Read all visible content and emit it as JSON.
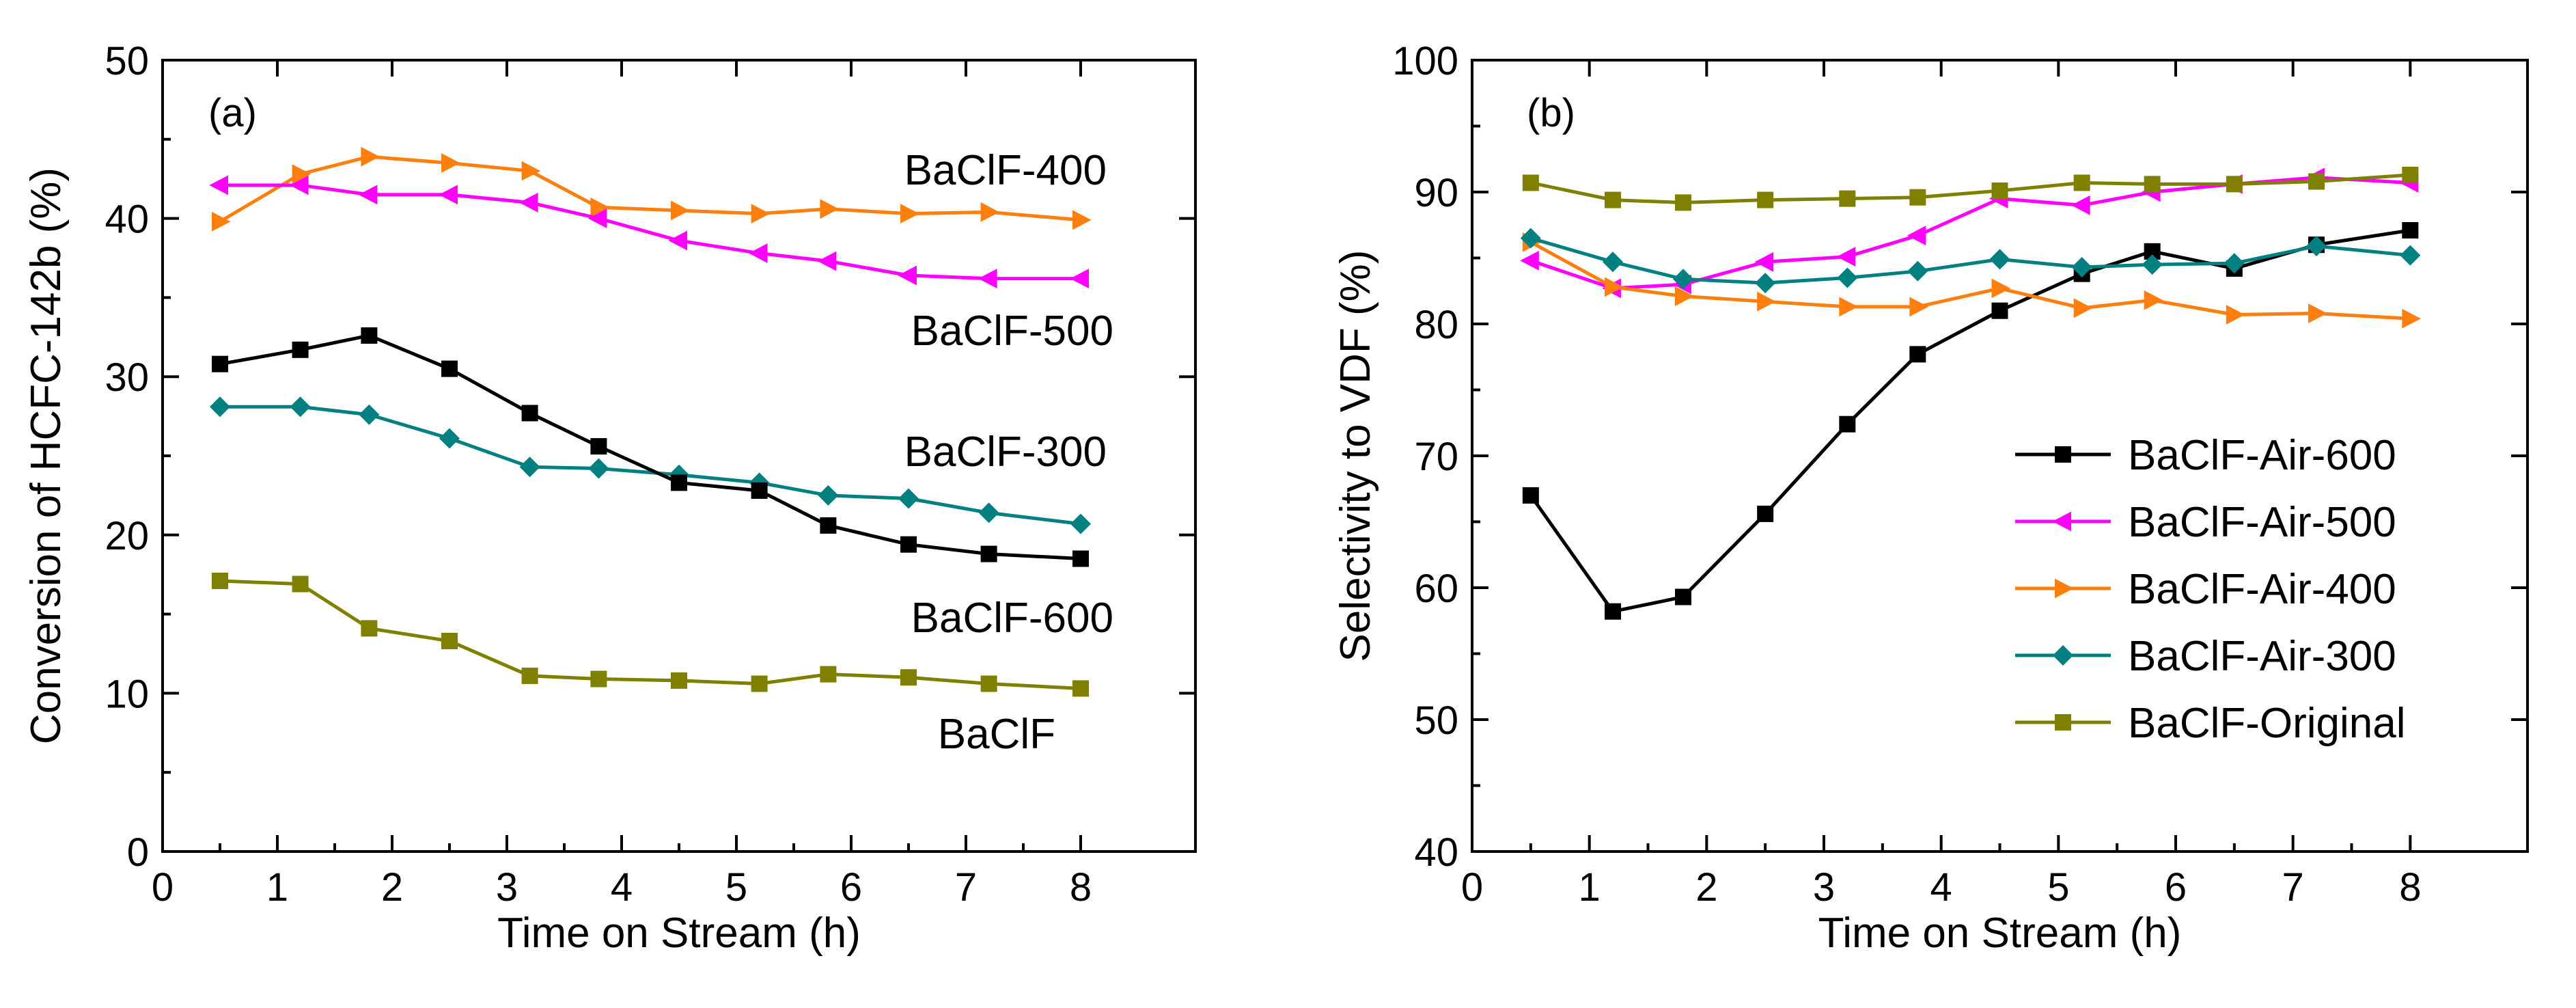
{
  "chart_data": [
    {
      "type": "line",
      "panel_label": "(a)",
      "xlabel": "Time on Stream (h)",
      "ylabel": "Conversion of HCFC-142b (%)",
      "xlim": [
        0,
        9
      ],
      "ylim": [
        0,
        50
      ],
      "xticks": [
        0,
        1,
        2,
        3,
        4,
        5,
        6,
        7,
        8
      ],
      "yticks": [
        0,
        10,
        20,
        30,
        40,
        50
      ],
      "grid": false,
      "x": [
        0.5,
        1.2,
        1.8,
        2.5,
        3.2,
        3.8,
        4.5,
        5.2,
        5.8,
        6.5,
        7.2,
        8.0
      ],
      "series": [
        {
          "name": "BaClF-400",
          "color": "#ff7f0e",
          "marker": "triangle-right",
          "values": [
            39.8,
            42.8,
            43.9,
            43.5,
            43.0,
            40.7,
            40.5,
            40.3,
            40.6,
            40.3,
            40.4,
            39.9
          ]
        },
        {
          "name": "BaClF-500",
          "color": "#ff00ff",
          "marker": "triangle-left",
          "values": [
            42.1,
            42.1,
            41.5,
            41.5,
            41.0,
            40.0,
            38.6,
            37.8,
            37.3,
            36.4,
            36.2,
            36.2
          ]
        },
        {
          "name": "BaClF-300",
          "color": "#008080",
          "marker": "diamond",
          "values": [
            28.1,
            28.1,
            27.6,
            26.1,
            24.3,
            24.2,
            23.8,
            23.3,
            22.5,
            22.3,
            21.4,
            20.7
          ]
        },
        {
          "name": "BaClF-600",
          "color": "#000000",
          "marker": "square",
          "values": [
            30.8,
            31.7,
            32.6,
            30.5,
            27.7,
            25.6,
            23.3,
            22.8,
            20.6,
            19.4,
            18.8,
            18.5
          ]
        },
        {
          "name": "BaClF",
          "color": "#808000",
          "marker": "square",
          "values": [
            17.1,
            16.9,
            14.1,
            13.3,
            11.1,
            10.9,
            10.8,
            10.6,
            11.2,
            11.0,
            10.6,
            10.3
          ]
        }
      ],
      "annotations": [
        "BaClF-400",
        "BaClF-500",
        "BaClF-300",
        "BaClF-600",
        "BaClF"
      ]
    },
    {
      "type": "line",
      "panel_label": "(b)",
      "xlabel": "Time on Stream (h)",
      "ylabel": "Selectivity to VDF (%)",
      "xlim": [
        0,
        9
      ],
      "ylim": [
        40,
        100
      ],
      "xticks": [
        0,
        1,
        2,
        3,
        4,
        5,
        6,
        7,
        8
      ],
      "yticks": [
        40,
        50,
        60,
        70,
        80,
        90,
        100
      ],
      "grid": false,
      "legend_position": "bottom-right",
      "x": [
        0.5,
        1.2,
        1.8,
        2.5,
        3.2,
        3.8,
        4.5,
        5.2,
        5.8,
        6.5,
        7.2,
        8.0
      ],
      "series": [
        {
          "name": "BaClF-Air-600",
          "color": "#000000",
          "marker": "square",
          "values": [
            67.0,
            58.2,
            59.3,
            65.6,
            72.4,
            77.7,
            81.0,
            83.8,
            85.5,
            84.2,
            86.0,
            87.1
          ]
        },
        {
          "name": "BaClF-Air-500",
          "color": "#ff00ff",
          "marker": "triangle-left",
          "values": [
            84.8,
            82.7,
            83.0,
            84.7,
            85.1,
            86.7,
            89.5,
            89.0,
            90.0,
            90.6,
            91.1,
            90.7
          ]
        },
        {
          "name": "BaClF-Air-400",
          "color": "#ff7f0e",
          "marker": "triangle-right",
          "values": [
            86.2,
            82.8,
            82.1,
            81.7,
            81.3,
            81.3,
            82.7,
            81.2,
            81.8,
            80.7,
            80.8,
            80.4
          ]
        },
        {
          "name": "BaClF-Air-300",
          "color": "#008080",
          "marker": "diamond",
          "values": [
            86.5,
            84.7,
            83.4,
            83.1,
            83.5,
            84.0,
            84.9,
            84.3,
            84.5,
            84.6,
            85.9,
            85.2
          ]
        },
        {
          "name": "BaClF-Original",
          "color": "#808000",
          "marker": "square",
          "values": [
            90.7,
            89.4,
            89.2,
            89.4,
            89.5,
            89.6,
            90.1,
            90.7,
            90.6,
            90.6,
            90.8,
            91.3
          ]
        }
      ]
    }
  ]
}
